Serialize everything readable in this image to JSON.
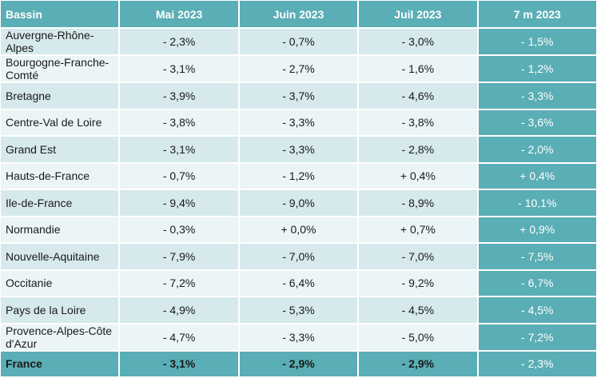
{
  "headers": [
    "Bassin",
    "Mai 2023",
    "Juin 2023",
    "Juil 2023",
    "7 m 2023"
  ],
  "rows": [
    [
      "Auvergne-Rhône-Alpes",
      "- 2,3%",
      "- 0,7%",
      "- 3,0%",
      "- 1,5%"
    ],
    [
      "Bourgogne-Franche-Comté",
      "- 3,1%",
      "- 2,7%",
      "- 1,6%",
      "- 1,2%"
    ],
    [
      "Bretagne",
      "- 3,9%",
      "- 3,7%",
      "- 4,6%",
      "- 3,3%"
    ],
    [
      "Centre-Val de Loire",
      "- 3,8%",
      "- 3,3%",
      "- 3,8%",
      "- 3,6%"
    ],
    [
      "Grand Est",
      "- 3,1%",
      "- 3,3%",
      "- 2,8%",
      "- 2,0%"
    ],
    [
      "Hauts-de-France",
      "- 0,7%",
      "- 1,2%",
      "+ 0,4%",
      "+ 0,4%"
    ],
    [
      "Ile-de-France",
      "- 9,4%",
      "- 9,0%",
      "- 8,9%",
      "- 10,1%"
    ],
    [
      "Normandie",
      "- 0,3%",
      "+ 0,0%",
      "+ 0,7%",
      "+ 0,9%"
    ],
    [
      "Nouvelle-Aquitaine",
      "- 7,9%",
      "- 7,0%",
      "- 7,0%",
      "- 7,5%"
    ],
    [
      "Occitanie",
      "- 7,2%",
      "- 6,4%",
      "- 9,2%",
      "- 6,7%"
    ],
    [
      "Pays de la Loire",
      "- 4,9%",
      "- 5,3%",
      "- 4,5%",
      "- 4,5%"
    ],
    [
      "Provence-Alpes-Côte d'Azur",
      "- 4,7%",
      "- 3,3%",
      "- 5,0%",
      "- 7,2%"
    ]
  ],
  "total": [
    "France",
    "- 3,1%",
    "- 2,9%",
    "- 2,9%",
    "- 2,3%"
  ],
  "colors": {
    "header": "#5aaeb5",
    "row_odd": "#d6e9ec",
    "row_even": "#ebf4f6"
  }
}
